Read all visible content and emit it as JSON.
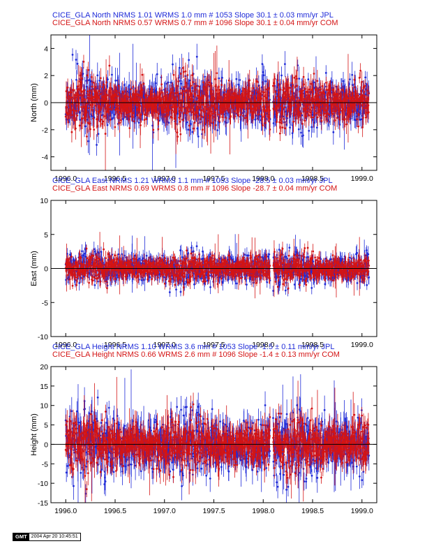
{
  "chart_data": [
    {
      "type": "scatter",
      "component": "North",
      "ylabel": "North (mm)",
      "title_lines": [
        {
          "text": "CICE_GLA North NRMS 1.01 WRMS  1.0 mm # 1053 Slope   30.1 ±  0.03 mm/yr JPL",
          "color": "#1f2bd8"
        },
        {
          "text": "CICE_GLA North NRMS 0.57 WRMS  0.7 mm # 1096 Slope   30.1 ±  0.04 mm/yr COM",
          "color": "#d41414"
        }
      ],
      "xlim": [
        1995.85,
        1999.15
      ],
      "ylim": [
        -5,
        5
      ],
      "xticks": [
        1996.0,
        1996.5,
        1997.0,
        1997.5,
        1998.0,
        1998.5,
        1999.0
      ],
      "xtick_labels": [
        "1996.0",
        "1996.5",
        "1997.0",
        "1997.5",
        "1998.0",
        "1998.5",
        "1999.0"
      ],
      "yticks": [
        -4,
        -2,
        0,
        2,
        4
      ],
      "ytick_labels": [
        "-4",
        "-2",
        "0",
        "2",
        "4"
      ],
      "series": [
        {
          "name": "JPL",
          "color": "#1f2bd8",
          "count": 1053,
          "rms": 0.9,
          "sigma": 0.7,
          "seed": 11
        },
        {
          "name": "COM",
          "color": "#d41414",
          "count": 1096,
          "rms": 0.8,
          "sigma": 0.6,
          "seed": 23
        }
      ],
      "zero_line": true
    },
    {
      "type": "scatter",
      "component": "East",
      "ylabel": "East (mm)",
      "title_lines": [
        {
          "text": "CICE_GLA East NRMS 1.21 WRMS  1.1 mm # 1053 Slope  -28.5 ±  0.03 mm/yr JPL",
          "color": "#1f2bd8"
        },
        {
          "text": "CICE_GLA East NRMS 0.69 WRMS  0.8 mm # 1096 Slope  -28.7 ±  0.04 mm/yr COM",
          "color": "#d41414"
        }
      ],
      "xlim": [
        1995.85,
        1999.15
      ],
      "ylim": [
        -10,
        10
      ],
      "xticks": [
        1996.0,
        1996.5,
        1997.0,
        1997.5,
        1998.0,
        1998.5,
        1999.0
      ],
      "xtick_labels": [
        "1996.0",
        "1996.5",
        "1997.0",
        "1997.5",
        "1998.0",
        "1998.5",
        "1999.0"
      ],
      "yticks": [
        -10,
        -5,
        0,
        5,
        10
      ],
      "ytick_labels": [
        "-10",
        "-5",
        "0",
        "5",
        "10"
      ],
      "series": [
        {
          "name": "JPL",
          "color": "#1f2bd8",
          "count": 1053,
          "rms": 1.1,
          "sigma": 0.9,
          "seed": 37
        },
        {
          "name": "COM",
          "color": "#d41414",
          "count": 1096,
          "rms": 0.9,
          "sigma": 0.8,
          "seed": 41
        }
      ],
      "zero_line": true
    },
    {
      "type": "scatter",
      "component": "Height",
      "ylabel": "Height (mm)",
      "title_lines": [
        {
          "text": "CICE_GLA Height NRMS 1.10 WRMS  3.6 mm # 1053 Slope   -1.5 ±  0.11 mm/yr JPL",
          "color": "#1f2bd8"
        },
        {
          "text": "CICE_GLA Height NRMS 0.66 WRMS  2.6 mm # 1096 Slope   -1.4 ±  0.13 mm/yr COM",
          "color": "#d41414"
        }
      ],
      "xlim": [
        1995.85,
        1999.15
      ],
      "ylim": [
        -15,
        20
      ],
      "xticks": [
        1996.0,
        1996.5,
        1997.0,
        1997.5,
        1998.0,
        1998.5,
        1999.0
      ],
      "xtick_labels": [
        "1996.0",
        "1996.5",
        "1997.0",
        "1997.5",
        "1998.0",
        "1998.5",
        "1999.0"
      ],
      "yticks": [
        -15,
        -10,
        -5,
        0,
        5,
        10,
        15,
        20
      ],
      "ytick_labels": [
        "-15",
        "-10",
        "-5",
        "0",
        "5",
        "10",
        "15",
        "20"
      ],
      "series": [
        {
          "name": "JPL",
          "color": "#1f2bd8",
          "count": 1053,
          "rms": 3.6,
          "sigma": 2.8,
          "seed": 53
        },
        {
          "name": "COM",
          "color": "#d41414",
          "count": 1096,
          "rms": 2.9,
          "sigma": 2.5,
          "seed": 67
        }
      ],
      "zero_line": true
    }
  ],
  "stamp": {
    "logo": "GMT",
    "timestamp": "2004 Apr 20 10:45:51"
  }
}
